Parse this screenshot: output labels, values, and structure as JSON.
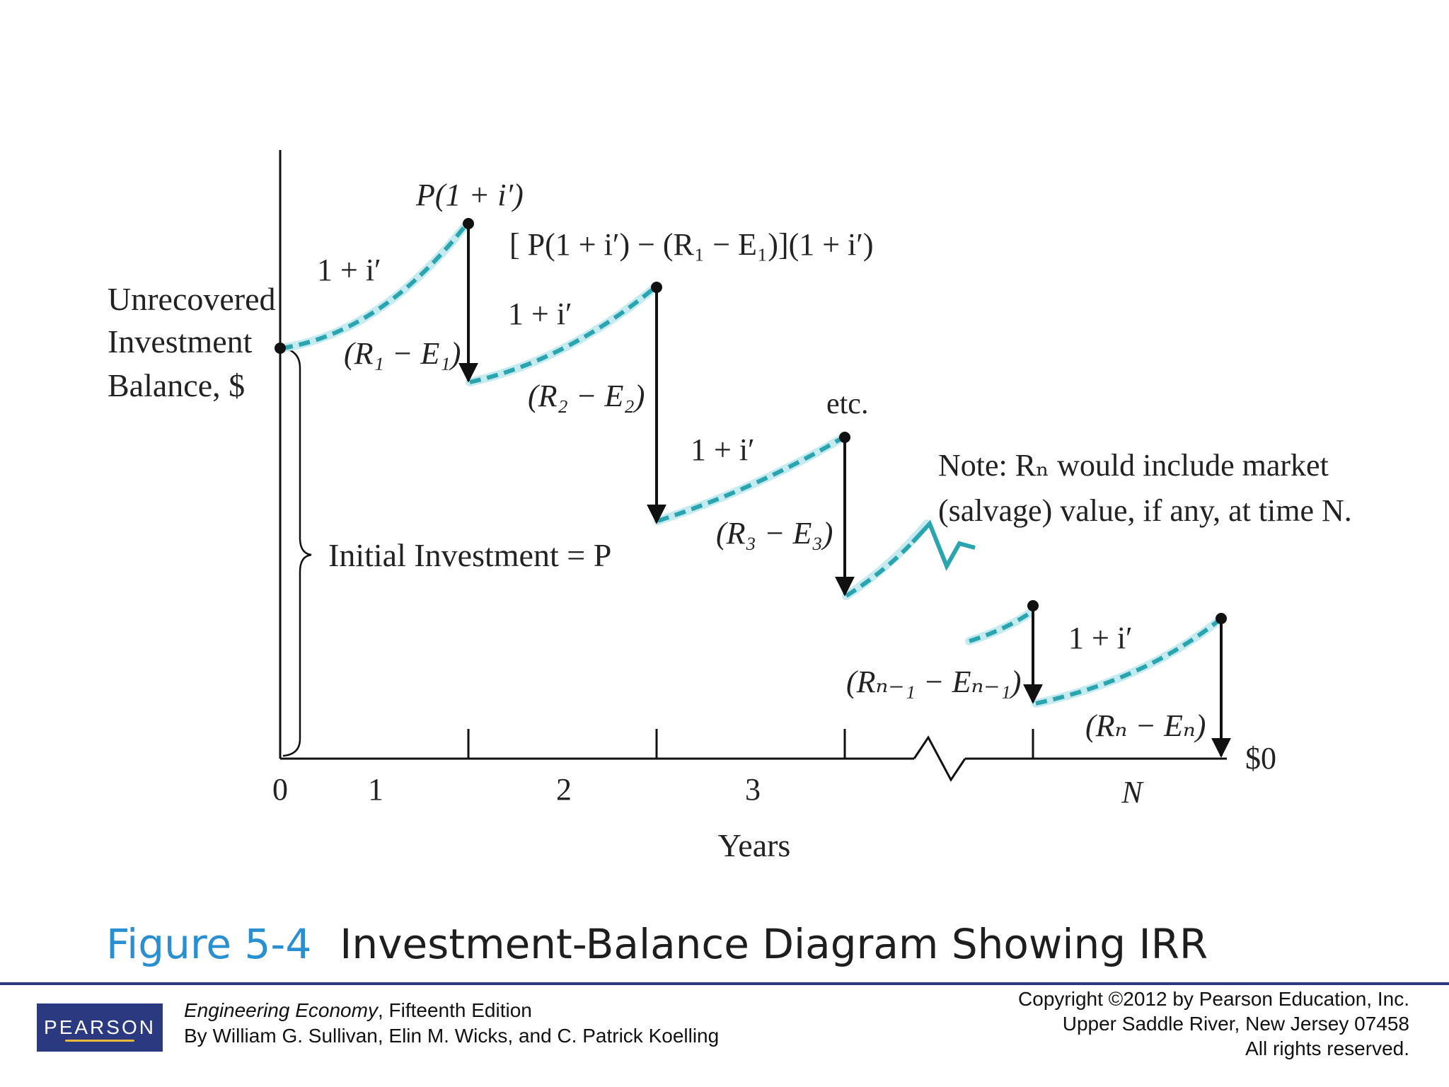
{
  "diagram": {
    "y_axis_title": [
      "Unrecovered",
      "Investment",
      "Balance, $"
    ],
    "x_axis_title": "Years",
    "x_ticks": [
      "0",
      "1",
      "2",
      "3",
      "N"
    ],
    "zero_label": "$0",
    "initial_investment_label": "Initial Investment = P",
    "etc_label": "etc.",
    "growth_factor_label": "1 + i′",
    "peak1_label": "P(1 + i′)",
    "peak2_label": "[ P(1 + i′) − (R₁ − E₁)](1 + i′)",
    "drop_labels": [
      "(R₁ − E₁)",
      "(R₂ − E₂)",
      "(R₃ − E₃)",
      "(Rₙ₋₁ − Eₙ₋₁)",
      "(Rₙ − Eₙ)"
    ],
    "note_lines": [
      "Note: Rₙ would include market",
      "(salvage) value, if any, at time N."
    ],
    "curve_color": "#2aa5b0",
    "glow_color": "#bfe9ee"
  },
  "caption": {
    "number": "Figure 5-4",
    "title": "Investment-Balance Diagram Showing IRR"
  },
  "footer": {
    "publisher_logo": "PEARSON",
    "book_title": "Engineering Economy",
    "book_edition": ", Fifteenth Edition",
    "authors": "By William G. Sullivan, Elin M. Wicks, and C. Patrick Koelling",
    "copyright": [
      "Copyright ©2012 by Pearson Education, Inc.",
      "Upper Saddle River, New Jersey 07458",
      "All rights reserved."
    ]
  }
}
